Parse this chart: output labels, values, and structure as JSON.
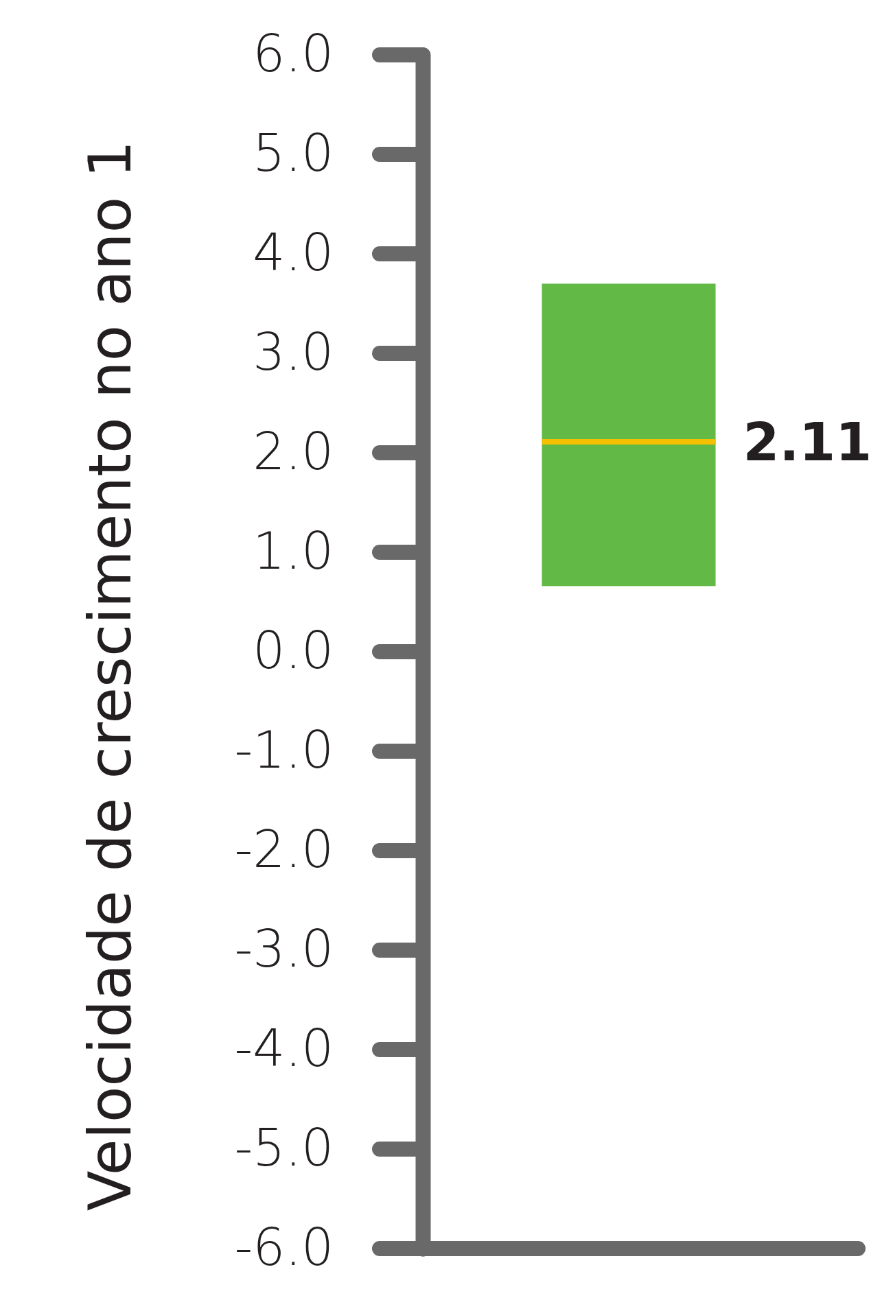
{
  "chart_data": {
    "type": "box",
    "ylabel": "Velocidade de crescimento no ano 1",
    "categories": [
      null
    ],
    "boxes": [
      {
        "low": 0.66,
        "q1": 0.66,
        "median": 2.11,
        "q3": 3.7,
        "high": 3.7
      }
    ],
    "colors": [
      "#62b946"
    ],
    "ylim": [
      -6,
      6
    ],
    "yticks": [
      {
        "value": 6,
        "label": "6.0"
      },
      {
        "value": 5,
        "label": "5.0"
      },
      {
        "value": 4,
        "label": "4.0"
      },
      {
        "value": 3,
        "label": "3.0"
      },
      {
        "value": 2,
        "label": "2.0"
      },
      {
        "value": 1,
        "label": "1.0"
      },
      {
        "value": 0,
        "label": "0.0"
      },
      {
        "value": -1,
        "label": "-1.0"
      },
      {
        "value": -2,
        "label": "-2.0"
      },
      {
        "value": -3,
        "label": "-3.0"
      },
      {
        "value": -4,
        "label": "-4.0"
      },
      {
        "value": -5,
        "label": "-5.0"
      },
      {
        "value": -6,
        "label": "-6.0"
      }
    ],
    "annotations": [
      "2.11"
    ],
    "grid": false
  }
}
